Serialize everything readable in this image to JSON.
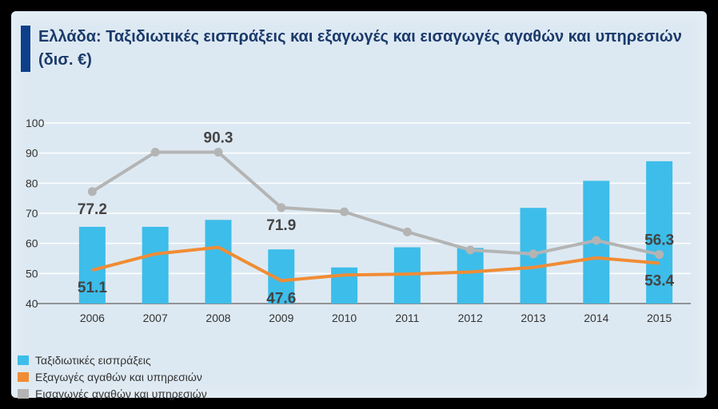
{
  "title": "Ελλάδα: Ταξιδιωτικές εισπράξεις και εξαγωγές και εισαγωγές αγαθών και υπηρεσιών (δισ. €)",
  "colors": {
    "bars": "#3dbdea",
    "exports": "#f08c35",
    "imports": "#b4b4b4",
    "title_accent": "#0d3f8a"
  },
  "chart_data": {
    "type": "bar+line",
    "title": "Ελλάδα: Ταξιδιωτικές εισπράξεις και εξαγωγές και εισαγωγές αγαθών και υπηρεσιών (δισ. €)",
    "categories": [
      "2006",
      "2007",
      "2008",
      "2009",
      "2010",
      "2011",
      "2012",
      "2013",
      "2014",
      "2015"
    ],
    "yticks": [
      "40",
      "50",
      "60",
      "70",
      "80",
      "90",
      "100"
    ],
    "ylim": [
      40,
      100
    ],
    "series": [
      {
        "name": "Ταξιδιωτικές εισπράξεις",
        "type": "bar",
        "values": [
          65.5,
          65.5,
          67.8,
          58,
          52,
          58.7,
          58.5,
          71.8,
          80.8,
          87.3
        ]
      },
      {
        "name": "Εξαγωγές αγαθών και υπηρεσιών",
        "type": "line",
        "values": [
          51.1,
          56.5,
          58.7,
          47.6,
          49.5,
          49.8,
          50.5,
          52,
          55.2,
          53.4
        ]
      },
      {
        "name": "Εισαγωγές αγαθών και υπηρεσιών",
        "type": "line",
        "values": [
          77.2,
          90.3,
          90.3,
          71.9,
          70.5,
          63.8,
          57.8,
          56.5,
          61,
          56.3
        ]
      }
    ],
    "data_labels": [
      {
        "text": "77.2",
        "series": 2,
        "index": 0,
        "pos": "below"
      },
      {
        "text": "90.3",
        "series": 2,
        "index": 2,
        "pos": "above"
      },
      {
        "text": "71.9",
        "series": 2,
        "index": 3,
        "pos": "below"
      },
      {
        "text": "56.3",
        "series": 2,
        "index": 9,
        "pos": "above"
      },
      {
        "text": "51.1",
        "series": 1,
        "index": 0,
        "pos": "below"
      },
      {
        "text": "47.6",
        "series": 1,
        "index": 3,
        "pos": "below"
      },
      {
        "text": "53.4",
        "series": 1,
        "index": 9,
        "pos": "below"
      }
    ],
    "legend": [
      "Ταξιδιωτικές εισπράξεις",
      "Εξαγωγές αγαθών και υπηρεσιών",
      "Εισαγωγές αγαθών και υπηρεσιών"
    ],
    "grid": true
  }
}
